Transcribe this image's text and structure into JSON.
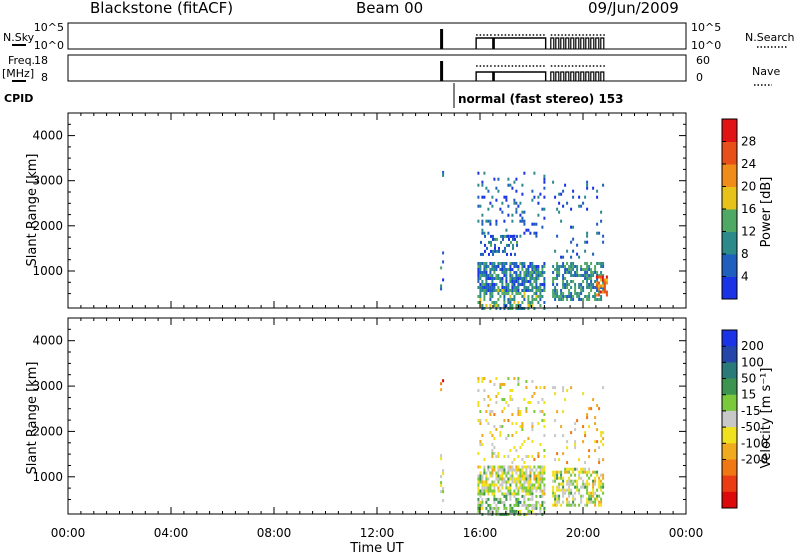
{
  "header": {
    "station": "Blackstone (fitACF)",
    "beam": "Beam 00",
    "date": "09/Jun/2009"
  },
  "summary": {
    "nsky_label": "N.Sky",
    "nsky_ticks": [
      "10^5",
      "10^0"
    ],
    "nsearch_ticks": [
      "10^5",
      "10^0"
    ],
    "nsearch_label": "N.Search",
    "freq_label": "Freq.",
    "freq_unit": "[MHz]",
    "freq_ticks": [
      "18",
      "8"
    ],
    "nave_ticks": [
      "60",
      "0"
    ],
    "nave_label": "Nave",
    "cpid_label": "CPID",
    "cpid_text": "normal (fast stereo) 153"
  },
  "axes": {
    "ylabel": "Slant Range [km]",
    "yticks": [
      "1000",
      "2000",
      "3000",
      "4000"
    ],
    "xlabel": "Time UT",
    "xticks": [
      "00:00",
      "04:00",
      "08:00",
      "12:00",
      "16:00",
      "20:00",
      "00:00"
    ]
  },
  "power_scale": {
    "label": "Power [dB]",
    "ticks": [
      "4",
      "8",
      "12",
      "16",
      "20",
      "24",
      "28"
    ],
    "colors": [
      "#1a33e6",
      "#1f5fbd",
      "#2d8a8a",
      "#4fa864",
      "#e6c21a",
      "#f08c19",
      "#e8501a",
      "#e01414"
    ]
  },
  "velocity_scale": {
    "label": "Velocity [m s⁻¹]",
    "ticks": [
      "200",
      "100",
      "50",
      "15",
      "-15",
      "-50",
      "-100",
      "-200"
    ],
    "colors": [
      "#1a33e6",
      "#2346a8",
      "#2a7a7a",
      "#3c9450",
      "#7ac83c",
      "#c8c8c8",
      "#f0e11e",
      "#f0aa1e",
      "#f07814",
      "#eb3c14",
      "#dc0a0a"
    ]
  },
  "chart_data": {
    "type": "heatmap",
    "title": "Blackstone (fitACF) Beam 00 09/Jun/2009",
    "xlabel": "Time UT",
    "ylabel": "Slant Range [km]",
    "xlim": [
      0,
      24
    ],
    "ylim": [
      180,
      4500
    ],
    "grid": false,
    "data_intervals_ut": [
      [
        14.45,
        14.55
      ],
      [
        15.85,
        16.5
      ],
      [
        16.55,
        18.55
      ],
      [
        18.75,
        20.85
      ]
    ],
    "panels": [
      {
        "name": "Power",
        "units": "dB",
        "colorbar": [
          0,
          32
        ],
        "colorbar_ticks": [
          4,
          8,
          12,
          16,
          20,
          24,
          28
        ],
        "scatter_regions": [
          {
            "t": [
              14.45,
              14.55
            ],
            "range": [
              500,
              1500
            ],
            "value": 8,
            "density": 0.35
          },
          {
            "t": [
              14.45,
              14.55
            ],
            "range": [
              2950,
              3350
            ],
            "value": 6,
            "density": 0.2
          },
          {
            "t": [
              15.9,
              18.5
            ],
            "range": [
              600,
              1200
            ],
            "value": 8,
            "density": 0.9
          },
          {
            "t": [
              15.9,
              18.5
            ],
            "range": [
              200,
              600
            ],
            "value": 12,
            "density": 0.6
          },
          {
            "t": [
              16.0,
              17.4
            ],
            "range": [
              1400,
              1800
            ],
            "value": 7,
            "density": 0.5
          },
          {
            "t": [
              15.9,
              18.5
            ],
            "range": [
              1800,
              3200
            ],
            "value": 6,
            "density": 0.15
          },
          {
            "t": [
              18.8,
              20.8
            ],
            "range": [
              400,
              1200
            ],
            "value": 10,
            "density": 0.75
          },
          {
            "t": [
              18.8,
              20.8
            ],
            "range": [
              1300,
              3000
            ],
            "value": 6,
            "density": 0.1
          },
          {
            "t": [
              20.5,
              20.9
            ],
            "range": [
              500,
              900
            ],
            "value": 24,
            "density": 0.8
          }
        ]
      },
      {
        "name": "Velocity",
        "units": "m s^-1",
        "colorbar": [
          -250,
          250
        ],
        "colorbar_ticks": [
          200,
          100,
          50,
          15,
          -15,
          -50,
          -100,
          -200
        ],
        "scatter_regions": [
          {
            "t": [
              14.45,
              14.55
            ],
            "range": [
              500,
              1500
            ],
            "value": 0,
            "density": 0.35
          },
          {
            "t": [
              14.45,
              14.55
            ],
            "range": [
              2950,
              3350
            ],
            "value": -150,
            "density": 0.2
          },
          {
            "t": [
              15.9,
              18.5
            ],
            "range": [
              600,
              1250
            ],
            "value": 0,
            "density": 0.9
          },
          {
            "t": [
              15.9,
              18.5
            ],
            "range": [
              180,
              600
            ],
            "value": 40,
            "density": 0.6
          },
          {
            "t": [
              15.9,
              18.5
            ],
            "range": [
              1300,
              3200
            ],
            "value": -40,
            "density": 0.15
          },
          {
            "t": [
              18.8,
              20.8
            ],
            "range": [
              400,
              1200
            ],
            "value": 0,
            "density": 0.7
          },
          {
            "t": [
              18.8,
              20.8
            ],
            "range": [
              1300,
              3000
            ],
            "value": -60,
            "density": 0.1
          }
        ]
      }
    ]
  }
}
